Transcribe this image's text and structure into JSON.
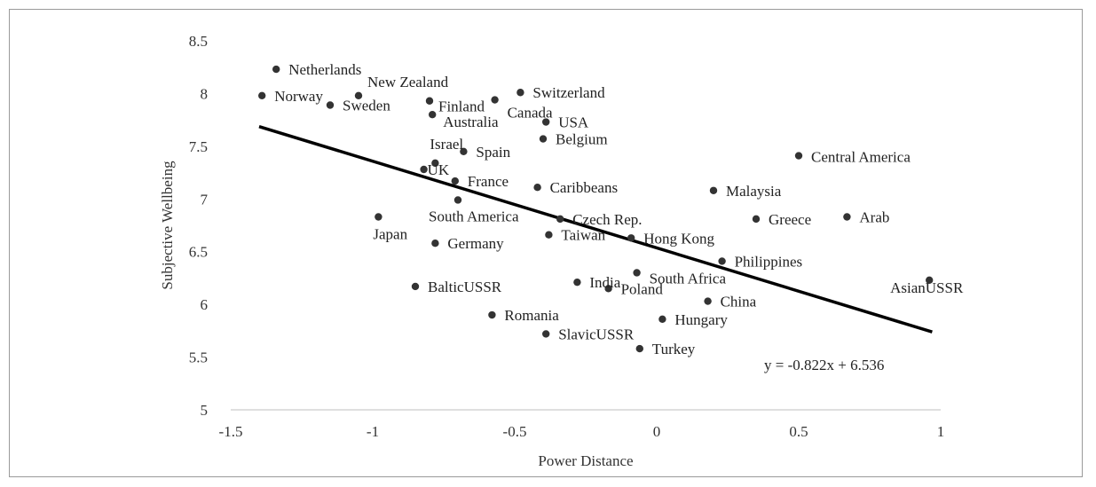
{
  "chart_data": {
    "type": "scatter",
    "xlabel": "Power Distance",
    "ylabel": "Subjective Wellbeing",
    "xlim": [
      -1.5,
      1
    ],
    "ylim": [
      5,
      8.5
    ],
    "xticks": [
      -1.5,
      -1,
      -0.5,
      0,
      0.5,
      1
    ],
    "xtick_labels": [
      "-1.5",
      "-1",
      "-0.5",
      "0",
      "0.5",
      "1"
    ],
    "yticks": [
      5,
      5.5,
      6,
      6.5,
      7,
      7.5,
      8,
      8.5
    ],
    "ytick_labels": [
      "5",
      "5.5",
      "6",
      "6.5",
      "7",
      "7.5",
      "8",
      "8.5"
    ],
    "grid": false,
    "marker_color": "#333333",
    "trendline": {
      "slope": -0.822,
      "intercept": 6.536,
      "x_range": [
        -1.4,
        0.97
      ],
      "equation": "y = -0.822x + 6.536",
      "color": "#000000"
    },
    "points": [
      {
        "label": "Netherlands",
        "x": -1.34,
        "y": 8.23
      },
      {
        "label": "Norway",
        "x": -1.39,
        "y": 7.98
      },
      {
        "label": "Sweden",
        "x": -1.15,
        "y": 7.89
      },
      {
        "label": "New Zealand",
        "x": -1.05,
        "y": 7.98
      },
      {
        "label": "Finland",
        "x": -0.8,
        "y": 7.93
      },
      {
        "label": "Canada",
        "x": -0.57,
        "y": 7.94
      },
      {
        "label": "Switzerland",
        "x": -0.48,
        "y": 8.01
      },
      {
        "label": "Australia",
        "x": -0.79,
        "y": 7.8
      },
      {
        "label": "USA",
        "x": -0.39,
        "y": 7.73
      },
      {
        "label": "Belgium",
        "x": -0.4,
        "y": 7.57
      },
      {
        "label": "Israel",
        "x": -0.78,
        "y": 7.34
      },
      {
        "label": "Spain",
        "x": -0.68,
        "y": 7.45
      },
      {
        "label": "UK",
        "x": -0.82,
        "y": 7.28
      },
      {
        "label": "France",
        "x": -0.71,
        "y": 7.17
      },
      {
        "label": "Caribbeans",
        "x": -0.42,
        "y": 7.11
      },
      {
        "label": "South America",
        "x": -0.7,
        "y": 6.99
      },
      {
        "label": "Japan",
        "x": -0.98,
        "y": 6.83
      },
      {
        "label": "Germany",
        "x": -0.78,
        "y": 6.58
      },
      {
        "label": "Czech Rep.",
        "x": -0.34,
        "y": 6.81
      },
      {
        "label": "Taiwan",
        "x": -0.38,
        "y": 6.66
      },
      {
        "label": "Hong Kong",
        "x": -0.09,
        "y": 6.63
      },
      {
        "label": "Central America",
        "x": 0.5,
        "y": 7.41
      },
      {
        "label": "Malaysia",
        "x": 0.2,
        "y": 7.08
      },
      {
        "label": "Greece",
        "x": 0.35,
        "y": 6.81
      },
      {
        "label": "Arab",
        "x": 0.67,
        "y": 6.83
      },
      {
        "label": "Philippines",
        "x": 0.23,
        "y": 6.41
      },
      {
        "label": "India",
        "x": -0.28,
        "y": 6.21
      },
      {
        "label": "South Africa",
        "x": -0.07,
        "y": 6.3
      },
      {
        "label": "Poland",
        "x": -0.17,
        "y": 6.15
      },
      {
        "label": "China",
        "x": 0.18,
        "y": 6.03
      },
      {
        "label": "AsianUSSR",
        "x": 0.96,
        "y": 6.23
      },
      {
        "label": "BalticUSSR",
        "x": -0.85,
        "y": 6.17
      },
      {
        "label": "Romania",
        "x": -0.58,
        "y": 5.9
      },
      {
        "label": "Hungary",
        "x": 0.02,
        "y": 5.86
      },
      {
        "label": "SlavicUSSR",
        "x": -0.39,
        "y": 5.72
      },
      {
        "label": "Turkey",
        "x": -0.06,
        "y": 5.58
      }
    ]
  }
}
